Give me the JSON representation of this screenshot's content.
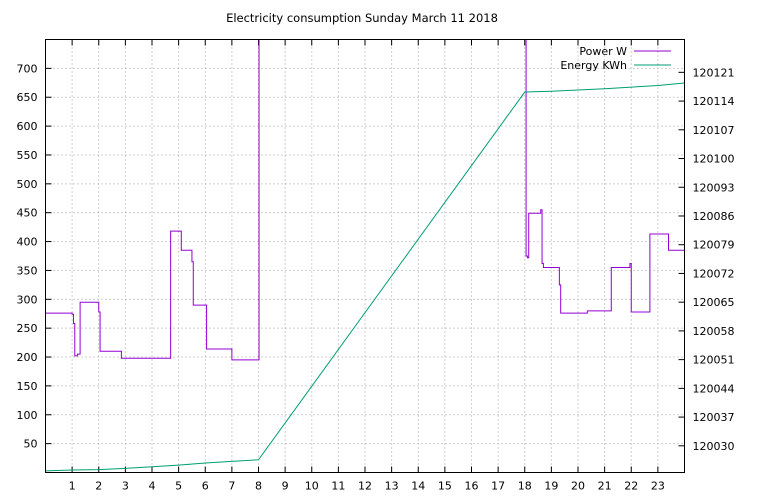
{
  "chart_data": {
    "type": "line",
    "title": "Electricity consumption Sunday March 11 2018",
    "xlabel": "",
    "ylabel": "",
    "y2label": "",
    "xlim": [
      0,
      24
    ],
    "ylim": [
      0,
      750
    ],
    "y2lim": [
      120023.5,
      120129
    ],
    "x_ticks": [
      1,
      2,
      3,
      4,
      5,
      6,
      7,
      8,
      9,
      10,
      11,
      12,
      13,
      14,
      15,
      16,
      17,
      18,
      19,
      20,
      21,
      22,
      23
    ],
    "y_ticks": [
      50,
      100,
      150,
      200,
      250,
      300,
      350,
      400,
      450,
      500,
      550,
      600,
      650,
      700
    ],
    "y2_ticks": [
      120030,
      120037,
      120044,
      120051,
      120058,
      120065,
      120072,
      120079,
      120086,
      120093,
      120100,
      120107,
      120114,
      120121
    ],
    "grid": true,
    "legend_position": "top-right",
    "series": [
      {
        "name": "Power W",
        "axis": "y",
        "color": "#9400d3",
        "step": true,
        "points": [
          [
            0.0,
            276
          ],
          [
            1.0,
            274
          ],
          [
            1.05,
            258
          ],
          [
            1.1,
            202
          ],
          [
            1.2,
            205
          ],
          [
            1.3,
            295
          ],
          [
            1.95,
            295
          ],
          [
            2.0,
            278
          ],
          [
            2.05,
            210
          ],
          [
            2.8,
            210
          ],
          [
            2.85,
            198
          ],
          [
            4.65,
            198
          ],
          [
            4.7,
            418
          ],
          [
            5.05,
            418
          ],
          [
            5.1,
            385
          ],
          [
            5.45,
            385
          ],
          [
            5.5,
            365
          ],
          [
            5.55,
            290
          ],
          [
            6.0,
            290
          ],
          [
            6.05,
            214
          ],
          [
            6.95,
            214
          ],
          [
            7.0,
            195
          ],
          [
            8.0,
            195
          ],
          [
            8.02,
            750
          ],
          [
            18.0,
            750
          ],
          [
            18.05,
            375
          ],
          [
            18.1,
            372
          ],
          [
            18.15,
            449
          ],
          [
            18.55,
            449
          ],
          [
            18.6,
            455
          ],
          [
            18.65,
            362
          ],
          [
            18.7,
            355
          ],
          [
            19.25,
            355
          ],
          [
            19.3,
            325
          ],
          [
            19.35,
            276
          ],
          [
            20.3,
            276
          ],
          [
            20.35,
            280
          ],
          [
            21.2,
            280
          ],
          [
            21.25,
            355
          ],
          [
            21.9,
            355
          ],
          [
            21.95,
            362
          ],
          [
            22.0,
            278
          ],
          [
            22.05,
            278
          ],
          [
            22.65,
            278
          ],
          [
            22.7,
            413
          ],
          [
            23.35,
            413
          ],
          [
            23.4,
            385
          ],
          [
            24.0,
            385
          ]
        ]
      },
      {
        "name": "Energy KWh",
        "axis": "y2",
        "color": "#009e73",
        "step": false,
        "points": [
          [
            0,
            120023.9
          ],
          [
            1,
            120024.1
          ],
          [
            2,
            120024.2
          ],
          [
            3,
            120024.5
          ],
          [
            4,
            120024.9
          ],
          [
            5,
            120025.3
          ],
          [
            6,
            120025.8
          ],
          [
            7,
            120026.2
          ],
          [
            8,
            120026.6
          ],
          [
            18,
            120116.2
          ],
          [
            19,
            120116.4
          ],
          [
            20,
            120116.7
          ],
          [
            21,
            120117.0
          ],
          [
            22,
            120117.4
          ],
          [
            23,
            120117.8
          ],
          [
            24,
            120118.4
          ]
        ]
      }
    ]
  }
}
